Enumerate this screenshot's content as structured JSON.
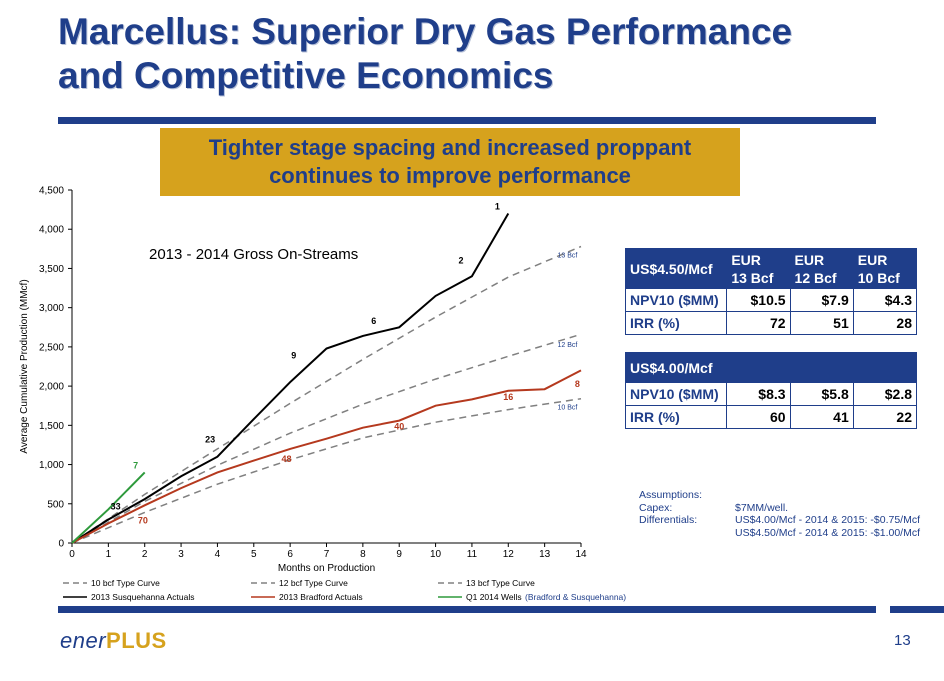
{
  "slide": {
    "title_line1": "Marcellus:  Superior Dry Gas Performance",
    "title_line2": "and Competitive Economics",
    "banner_line1": "Tighter stage spacing and increased proppant",
    "banner_line2": "continues to improve performance",
    "page_number": "13",
    "logo_part1": "ener",
    "logo_part2": "PLUS",
    "colors": {
      "brand_blue": "#1f3e8a",
      "gold": "#d6a21d",
      "bradford": "#b5391e",
      "q1_wells": "#2e9a3c"
    }
  },
  "chart_data": {
    "type": "line",
    "title": "2013 - 2014 Gross On-Streams",
    "xlabel": "Months on Production",
    "ylabel": "Average Cumulative Production (MMcf)",
    "xlim": [
      0,
      14
    ],
    "ylim": [
      0,
      4500
    ],
    "x_ticks": [
      "0",
      "1",
      "2",
      "3",
      "4",
      "5",
      "6",
      "7",
      "8",
      "9",
      "10",
      "11",
      "12",
      "13",
      "14"
    ],
    "y_ticks": [
      "0",
      "500",
      "1,000",
      "1,500",
      "2,000",
      "2,500",
      "3,000",
      "3,500",
      "4,000",
      "4,500"
    ],
    "grid": false,
    "legend_position": "bottom",
    "series": [
      {
        "name": "10 bcf Type Curve",
        "style": "dashed",
        "color": "#808080",
        "points": [
          [
            0,
            0
          ],
          [
            2,
            390
          ],
          [
            4,
            750
          ],
          [
            6,
            1060
          ],
          [
            8,
            1340
          ],
          [
            10,
            1540
          ],
          [
            12,
            1700
          ],
          [
            14,
            1840
          ]
        ]
      },
      {
        "name": "12 bcf Type Curve",
        "style": "dashed",
        "color": "#808080",
        "points": [
          [
            0,
            0
          ],
          [
            2,
            530
          ],
          [
            4,
            990
          ],
          [
            6,
            1400
          ],
          [
            8,
            1770
          ],
          [
            10,
            2090
          ],
          [
            12,
            2380
          ],
          [
            14,
            2660
          ]
        ]
      },
      {
        "name": "13 bcf Type Curve",
        "style": "dashed",
        "color": "#808080",
        "points": [
          [
            0,
            0
          ],
          [
            2,
            620
          ],
          [
            4,
            1200
          ],
          [
            6,
            1780
          ],
          [
            8,
            2340
          ],
          [
            10,
            2880
          ],
          [
            12,
            3390
          ],
          [
            14,
            3780
          ]
        ]
      },
      {
        "name": "2013 Susquehanna Actuals",
        "style": "solid",
        "color": "#000000",
        "points": [
          [
            0,
            0
          ],
          [
            1,
            300
          ],
          [
            2,
            560
          ],
          [
            3,
            850
          ],
          [
            4,
            1100
          ],
          [
            5,
            1580
          ],
          [
            6,
            2050
          ],
          [
            7,
            2480
          ],
          [
            8,
            2640
          ],
          [
            9,
            2750
          ],
          [
            10,
            3150
          ],
          [
            11,
            3400
          ],
          [
            12,
            4200
          ]
        ]
      },
      {
        "name": "2013 Bradford Actuals",
        "style": "solid",
        "color": "#b5391e",
        "points": [
          [
            0,
            0
          ],
          [
            1,
            250
          ],
          [
            2,
            480
          ],
          [
            3,
            700
          ],
          [
            4,
            900
          ],
          [
            5,
            1050
          ],
          [
            6,
            1200
          ],
          [
            7,
            1330
          ],
          [
            8,
            1470
          ],
          [
            9,
            1560
          ],
          [
            10,
            1750
          ],
          [
            11,
            1830
          ],
          [
            12,
            1940
          ],
          [
            13,
            1960
          ],
          [
            14,
            2200
          ]
        ]
      },
      {
        "name": "Q1 2014 Wells",
        "style": "solid",
        "color": "#2e9a3c",
        "points": [
          [
            0,
            0
          ],
          [
            1,
            430
          ],
          [
            2,
            900
          ]
        ]
      }
    ],
    "well_count_labels": [
      {
        "text": "33",
        "x": 1.2,
        "y": 430,
        "color": "#000000"
      },
      {
        "text": "23",
        "x": 3.8,
        "y": 1280,
        "color": "#000000"
      },
      {
        "text": "9",
        "x": 6.1,
        "y": 2350,
        "color": "#000000"
      },
      {
        "text": "6",
        "x": 8.3,
        "y": 2790,
        "color": "#000000"
      },
      {
        "text": "2",
        "x": 10.7,
        "y": 3560,
        "color": "#000000"
      },
      {
        "text": "1",
        "x": 11.7,
        "y": 4250,
        "color": "#000000"
      },
      {
        "text": "70",
        "x": 1.95,
        "y": 250,
        "color": "#b5391e"
      },
      {
        "text": "48",
        "x": 5.9,
        "y": 1030,
        "color": "#b5391e"
      },
      {
        "text": "40",
        "x": 9.0,
        "y": 1450,
        "color": "#b5391e"
      },
      {
        "text": "16",
        "x": 12.0,
        "y": 1820,
        "color": "#b5391e"
      },
      {
        "text": "8",
        "x": 13.9,
        "y": 1990,
        "color": "#b5391e"
      },
      {
        "text": "7",
        "x": 1.75,
        "y": 950,
        "color": "#2e9a3c"
      }
    ],
    "curve_end_labels": [
      {
        "text": "13 Bcf",
        "x": 13.9,
        "y": 3640
      },
      {
        "text": "12 Bcf",
        "x": 13.9,
        "y": 2500
      },
      {
        "text": "10 Bcf",
        "x": 13.9,
        "y": 1700
      }
    ],
    "legend_suffix": "(Bradford & Susquehanna)"
  },
  "economics": {
    "table1": {
      "price_label": "US$4.50/Mcf",
      "columns": [
        "EUR\n13 Bcf",
        "EUR\n12 Bcf",
        "EUR\n10 Bcf"
      ],
      "rows": [
        {
          "label": "NPV10 ($MM)",
          "values": [
            "$10.5",
            "$7.9",
            "$4.3"
          ]
        },
        {
          "label": "IRR (%)",
          "values": [
            "72",
            "51",
            "28"
          ]
        }
      ]
    },
    "table2": {
      "price_label": "US$4.00/Mcf",
      "rows": [
        {
          "label": "NPV10 ($MM)",
          "values": [
            "$8.3",
            "$5.8",
            "$2.8"
          ]
        },
        {
          "label": "IRR (%)",
          "values": [
            "60",
            "41",
            "22"
          ]
        }
      ]
    },
    "assumptions": {
      "heading": "Assumptions:",
      "capex_label": "Capex:",
      "capex_value": "$7MM/well.",
      "diff_label": "Differentials:",
      "diff_line1": "US$4.00/Mcf - 2014 & 2015:  -$0.75/Mcf",
      "diff_line2": "US$4.50/Mcf - 2014 & 2015:  -$1.00/Mcf"
    }
  }
}
